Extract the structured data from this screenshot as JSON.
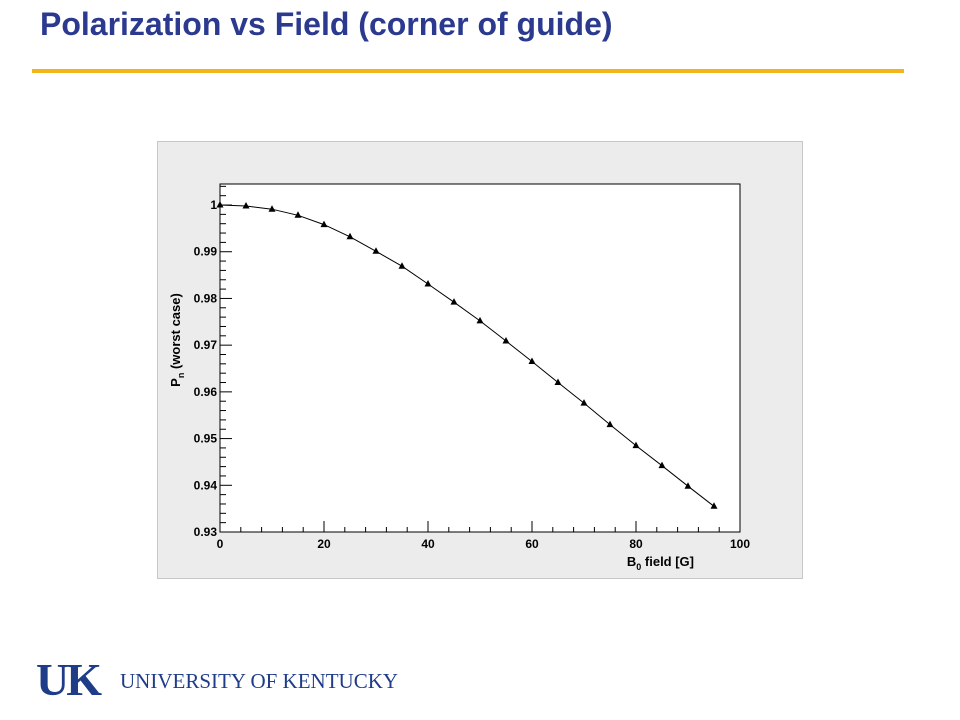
{
  "slide": {
    "title": "Polarization vs Field (corner of guide)",
    "title_color": "#2b3a8f",
    "rule_color": "#f3b61a"
  },
  "logo": {
    "mark": "UK",
    "name": "UNIVERSITY OF KENTUCKY",
    "color": "#1f3c88"
  },
  "chart_data": {
    "type": "scatter",
    "xlabel_main": "B",
    "xlabel_sub": "0",
    "xlabel_rest": " field  [G]",
    "ylabel_main": "P",
    "ylabel_sub": "n",
    "ylabel_rest": "  (worst case)",
    "xlim": [
      0,
      100
    ],
    "ylim": [
      0.93,
      1.0045
    ],
    "xticks": [
      0,
      20,
      40,
      60,
      80,
      100
    ],
    "xtick_labels": [
      "0",
      "20",
      "40",
      "60",
      "80",
      "100"
    ],
    "yticks": [
      0.93,
      0.94,
      0.95,
      0.96,
      0.97,
      0.98,
      0.99,
      1.0
    ],
    "ytick_labels": [
      "0.93",
      "0.94",
      "0.95",
      "0.96",
      "0.97",
      "0.98",
      "0.99",
      "1"
    ],
    "marker": "triangle",
    "connected": true,
    "grid": false,
    "series": [
      {
        "x": [
          0,
          5,
          10,
          15,
          20,
          25,
          30,
          35,
          40,
          45,
          50,
          55,
          60,
          65,
          70,
          75,
          80,
          85,
          90,
          95
        ],
        "y": [
          1.0,
          0.9998,
          0.9991,
          0.9978,
          0.9958,
          0.9932,
          0.9901,
          0.9869,
          0.9831,
          0.9792,
          0.9752,
          0.9709,
          0.9665,
          0.962,
          0.9576,
          0.953,
          0.9485,
          0.9442,
          0.9398,
          0.9355
        ]
      }
    ]
  }
}
